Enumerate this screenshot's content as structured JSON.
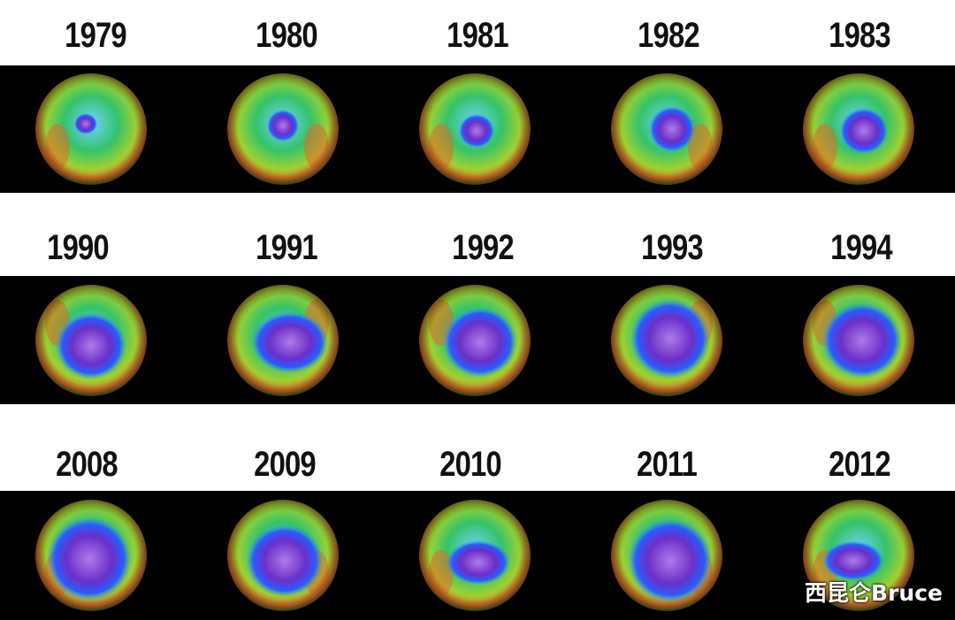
{
  "rows": [
    {
      "years": [
        "1979",
        "1980",
        "1981",
        "1982",
        "1983"
      ],
      "hole_size": [
        0.18,
        0.25,
        0.28,
        0.36,
        0.38
      ]
    },
    {
      "years": [
        "1990",
        "1991",
        "1992",
        "1993",
        "1994"
      ],
      "hole_size": [
        0.55,
        0.6,
        0.58,
        0.62,
        0.62
      ]
    },
    {
      "years": [
        "2008",
        "2009",
        "2010",
        "2011",
        "2012"
      ],
      "hole_size": [
        0.66,
        0.6,
        0.5,
        0.66,
        0.48
      ]
    }
  ],
  "colors": {
    "hole": "#6a2fc8",
    "ring": "#2a5cff",
    "ozone_mid": "#35c46a",
    "ozone_high": "#e06a2a",
    "background": "#000000"
  },
  "watermark": "西昆仑Bruce"
}
